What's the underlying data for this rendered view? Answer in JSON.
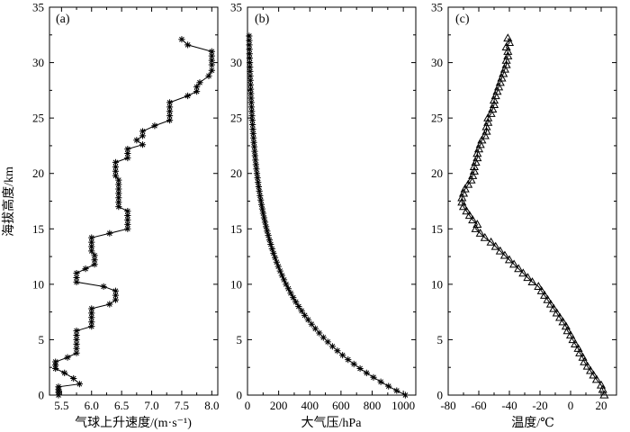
{
  "chart_data": [
    {
      "type": "line",
      "panel": "(a)",
      "xlabel": "气球上升速度/(m·s⁻¹)",
      "ylabel": "海拔高度/km",
      "xlim": [
        5.3,
        8.1
      ],
      "ylim": [
        0,
        35
      ],
      "xticks": [
        "5.5",
        "6.0",
        "6.5",
        "7.0",
        "7.5",
        "8.0"
      ],
      "yticks": [
        "0",
        "5",
        "10",
        "15",
        "20",
        "25",
        "30",
        "35"
      ],
      "marker": "asterisk",
      "points": [
        [
          5.45,
          0.0
        ],
        [
          5.45,
          0.25
        ],
        [
          5.45,
          0.5
        ],
        [
          5.45,
          0.75
        ],
        [
          5.8,
          1.0
        ],
        [
          5.7,
          1.5
        ],
        [
          5.55,
          2.0
        ],
        [
          5.4,
          2.4
        ],
        [
          5.4,
          2.7
        ],
        [
          5.4,
          3.0
        ],
        [
          5.6,
          3.4
        ],
        [
          5.75,
          3.8
        ],
        [
          5.75,
          4.2
        ],
        [
          5.75,
          4.6
        ],
        [
          5.75,
          5.0
        ],
        [
          5.75,
          5.4
        ],
        [
          5.75,
          5.8
        ],
        [
          6.0,
          6.2
        ],
        [
          6.0,
          6.6
        ],
        [
          6.0,
          7.0
        ],
        [
          6.0,
          7.4
        ],
        [
          6.0,
          7.8
        ],
        [
          6.3,
          8.2
        ],
        [
          6.4,
          8.6
        ],
        [
          6.4,
          9.0
        ],
        [
          6.4,
          9.4
        ],
        [
          6.2,
          9.8
        ],
        [
          5.75,
          10.2
        ],
        [
          5.75,
          10.6
        ],
        [
          5.75,
          11.0
        ],
        [
          5.9,
          11.4
        ],
        [
          6.05,
          11.8
        ],
        [
          6.05,
          12.2
        ],
        [
          6.05,
          12.6
        ],
        [
          6.0,
          13.0
        ],
        [
          6.0,
          13.4
        ],
        [
          6.0,
          13.8
        ],
        [
          6.0,
          14.2
        ],
        [
          6.3,
          14.6
        ],
        [
          6.6,
          15.0
        ],
        [
          6.6,
          15.4
        ],
        [
          6.6,
          15.8
        ],
        [
          6.6,
          16.2
        ],
        [
          6.6,
          16.6
        ],
        [
          6.45,
          17.0
        ],
        [
          6.45,
          17.4
        ],
        [
          6.45,
          17.8
        ],
        [
          6.45,
          18.2
        ],
        [
          6.45,
          18.6
        ],
        [
          6.45,
          19.0
        ],
        [
          6.45,
          19.4
        ],
        [
          6.4,
          19.8
        ],
        [
          6.4,
          20.2
        ],
        [
          6.4,
          20.6
        ],
        [
          6.4,
          21.0
        ],
        [
          6.6,
          21.4
        ],
        [
          6.6,
          21.8
        ],
        [
          6.6,
          22.2
        ],
        [
          6.85,
          22.6
        ],
        [
          6.75,
          23.0
        ],
        [
          6.85,
          23.4
        ],
        [
          6.85,
          23.8
        ],
        [
          7.05,
          24.3
        ],
        [
          7.3,
          24.8
        ],
        [
          7.3,
          25.2
        ],
        [
          7.3,
          25.6
        ],
        [
          7.3,
          26.0
        ],
        [
          7.3,
          26.4
        ],
        [
          7.6,
          27.0
        ],
        [
          7.75,
          27.4
        ],
        [
          7.75,
          27.8
        ],
        [
          7.8,
          28.2
        ],
        [
          7.95,
          28.8
        ],
        [
          8.0,
          29.3
        ],
        [
          8.0,
          29.8
        ],
        [
          8.0,
          30.2
        ],
        [
          8.0,
          30.6
        ],
        [
          8.0,
          31.0
        ],
        [
          7.6,
          31.6
        ],
        [
          7.5,
          32.1
        ]
      ]
    },
    {
      "type": "line",
      "panel": "(b)",
      "xlabel": "大气压/hPa",
      "ylabel": "",
      "xlim": [
        0,
        1080
      ],
      "ylim": [
        0,
        35
      ],
      "xticks": [
        "0",
        "200",
        "400",
        "600",
        "800",
        "1000"
      ],
      "yticks": [
        "0",
        "5",
        "10",
        "15",
        "20",
        "25",
        "30",
        "35"
      ],
      "marker": "asterisk",
      "profile": "pressure = 1013 × exp(−height / 7.1 km)",
      "surface_pressure_hPa": 1013,
      "scale_height_km": 7.1,
      "height_range_km": [
        0,
        32.5
      ],
      "height_step_km": 0.4
    },
    {
      "type": "line",
      "panel": "(c)",
      "xlabel": "温度/℃",
      "ylabel": "",
      "xlim": [
        -80,
        30
      ],
      "ylim": [
        0,
        35
      ],
      "xticks": [
        "-80",
        "-60",
        "-40",
        "-20",
        "0",
        "20"
      ],
      "yticks": [
        "0",
        "5",
        "10",
        "15",
        "20",
        "25",
        "30",
        "35"
      ],
      "marker": "triangle",
      "points": [
        [
          22,
          0.0
        ],
        [
          21,
          0.5
        ],
        [
          20,
          0.9
        ],
        [
          17,
          1.4
        ],
        [
          15,
          1.8
        ],
        [
          13,
          2.2
        ],
        [
          11,
          2.6
        ],
        [
          9,
          3.0
        ],
        [
          8,
          3.4
        ],
        [
          6,
          3.8
        ],
        [
          5,
          4.2
        ],
        [
          3,
          4.6
        ],
        [
          1.5,
          5.0
        ],
        [
          0,
          5.4
        ],
        [
          -2,
          5.8
        ],
        [
          -3,
          6.2
        ],
        [
          -5,
          6.6
        ],
        [
          -7,
          7.0
        ],
        [
          -9,
          7.4
        ],
        [
          -11,
          7.8
        ],
        [
          -13,
          8.2
        ],
        [
          -15,
          8.6
        ],
        [
          -17,
          9.0
        ],
        [
          -19,
          9.4
        ],
        [
          -21,
          9.8
        ],
        [
          -25,
          10.2
        ],
        [
          -28,
          10.6
        ],
        [
          -31,
          11.0
        ],
        [
          -34,
          11.4
        ],
        [
          -37,
          11.8
        ],
        [
          -40,
          12.2
        ],
        [
          -43,
          12.6
        ],
        [
          -46,
          13.0
        ],
        [
          -49,
          13.4
        ],
        [
          -52,
          13.8
        ],
        [
          -56,
          14.2
        ],
        [
          -59,
          14.6
        ],
        [
          -62,
          15.0
        ],
        [
          -61,
          15.4
        ],
        [
          -64,
          15.8
        ],
        [
          -66,
          16.2
        ],
        [
          -68,
          16.6
        ],
        [
          -70,
          17.0
        ],
        [
          -71,
          17.4
        ],
        [
          -71,
          17.8
        ],
        [
          -70,
          18.2
        ],
        [
          -69,
          18.6
        ],
        [
          -67,
          19.0
        ],
        [
          -65,
          19.4
        ],
        [
          -64,
          19.8
        ],
        [
          -63,
          20.2
        ],
        [
          -63,
          20.6
        ],
        [
          -62,
          21.0
        ],
        [
          -61,
          21.4
        ],
        [
          -61,
          21.8
        ],
        [
          -60,
          22.2
        ],
        [
          -59,
          22.6
        ],
        [
          -58,
          23.0
        ],
        [
          -56,
          23.4
        ],
        [
          -55,
          23.8
        ],
        [
          -55,
          24.2
        ],
        [
          -54,
          24.6
        ],
        [
          -54,
          25.0
        ],
        [
          -52,
          25.4
        ],
        [
          -51,
          25.8
        ],
        [
          -50,
          26.2
        ],
        [
          -50,
          26.6
        ],
        [
          -49,
          27.0
        ],
        [
          -48,
          27.4
        ],
        [
          -47,
          27.8
        ],
        [
          -46,
          28.2
        ],
        [
          -45,
          28.6
        ],
        [
          -44,
          29.0
        ],
        [
          -43,
          29.4
        ],
        [
          -42,
          29.8
        ],
        [
          -42,
          30.2
        ],
        [
          -41,
          30.6
        ],
        [
          -41,
          31.0
        ],
        [
          -42,
          31.4
        ],
        [
          -40,
          31.8
        ],
        [
          -41,
          32.2
        ]
      ]
    }
  ]
}
